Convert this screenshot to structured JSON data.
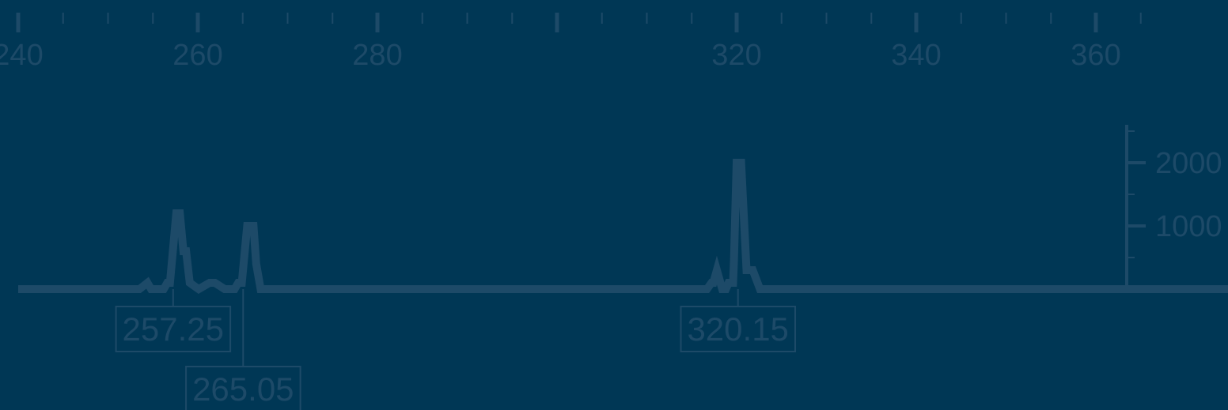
{
  "colors": {
    "background": "#003755",
    "foreground": "#1d4a68"
  },
  "chart_data": {
    "type": "line",
    "title": "",
    "xlabel": "",
    "ylabel": "",
    "xlim": [
      240,
      376
    ],
    "ylim": [
      0,
      2500
    ],
    "x_ticks": [
      "240",
      "260",
      "280",
      "320",
      "340",
      "360"
    ],
    "y_ticks": [
      "1000",
      "2000"
    ],
    "series": [
      {
        "x": [
          240,
          253.5,
          254.4,
          254.8,
          256.2,
          256.6,
          256.9,
          257.6,
          258.0,
          258.4,
          258.7,
          259.1,
          260.1,
          261.3,
          261.9,
          263.0,
          264.1,
          264.5,
          264.9,
          265.5,
          266.2,
          266.5,
          267.0,
          267.6,
          316.7,
          317.2,
          317.4,
          317.8,
          318.4,
          318.8,
          319.1,
          319.6,
          319.7,
          320.0,
          320.5,
          320.8,
          321.1,
          321.8,
          322.6,
          323.1,
          376
        ],
        "y": [
          0,
          0,
          100,
          0,
          0,
          100,
          100,
          1200,
          1200,
          600,
          600,
          100,
          0,
          100,
          100,
          0,
          0,
          100,
          100,
          1000,
          1000,
          400,
          0,
          0,
          0,
          100,
          100,
          300,
          0,
          0,
          100,
          100,
          450,
          2000,
          2000,
          1150,
          300,
          300,
          0,
          0,
          0
        ]
      }
    ],
    "peak_labels": [
      {
        "text": "257.25",
        "x": 257.25,
        "level": 0
      },
      {
        "text": "265.05",
        "x": 265.05,
        "level": 1
      },
      {
        "text": "320.15",
        "x": 320.15,
        "level": 0
      }
    ]
  }
}
